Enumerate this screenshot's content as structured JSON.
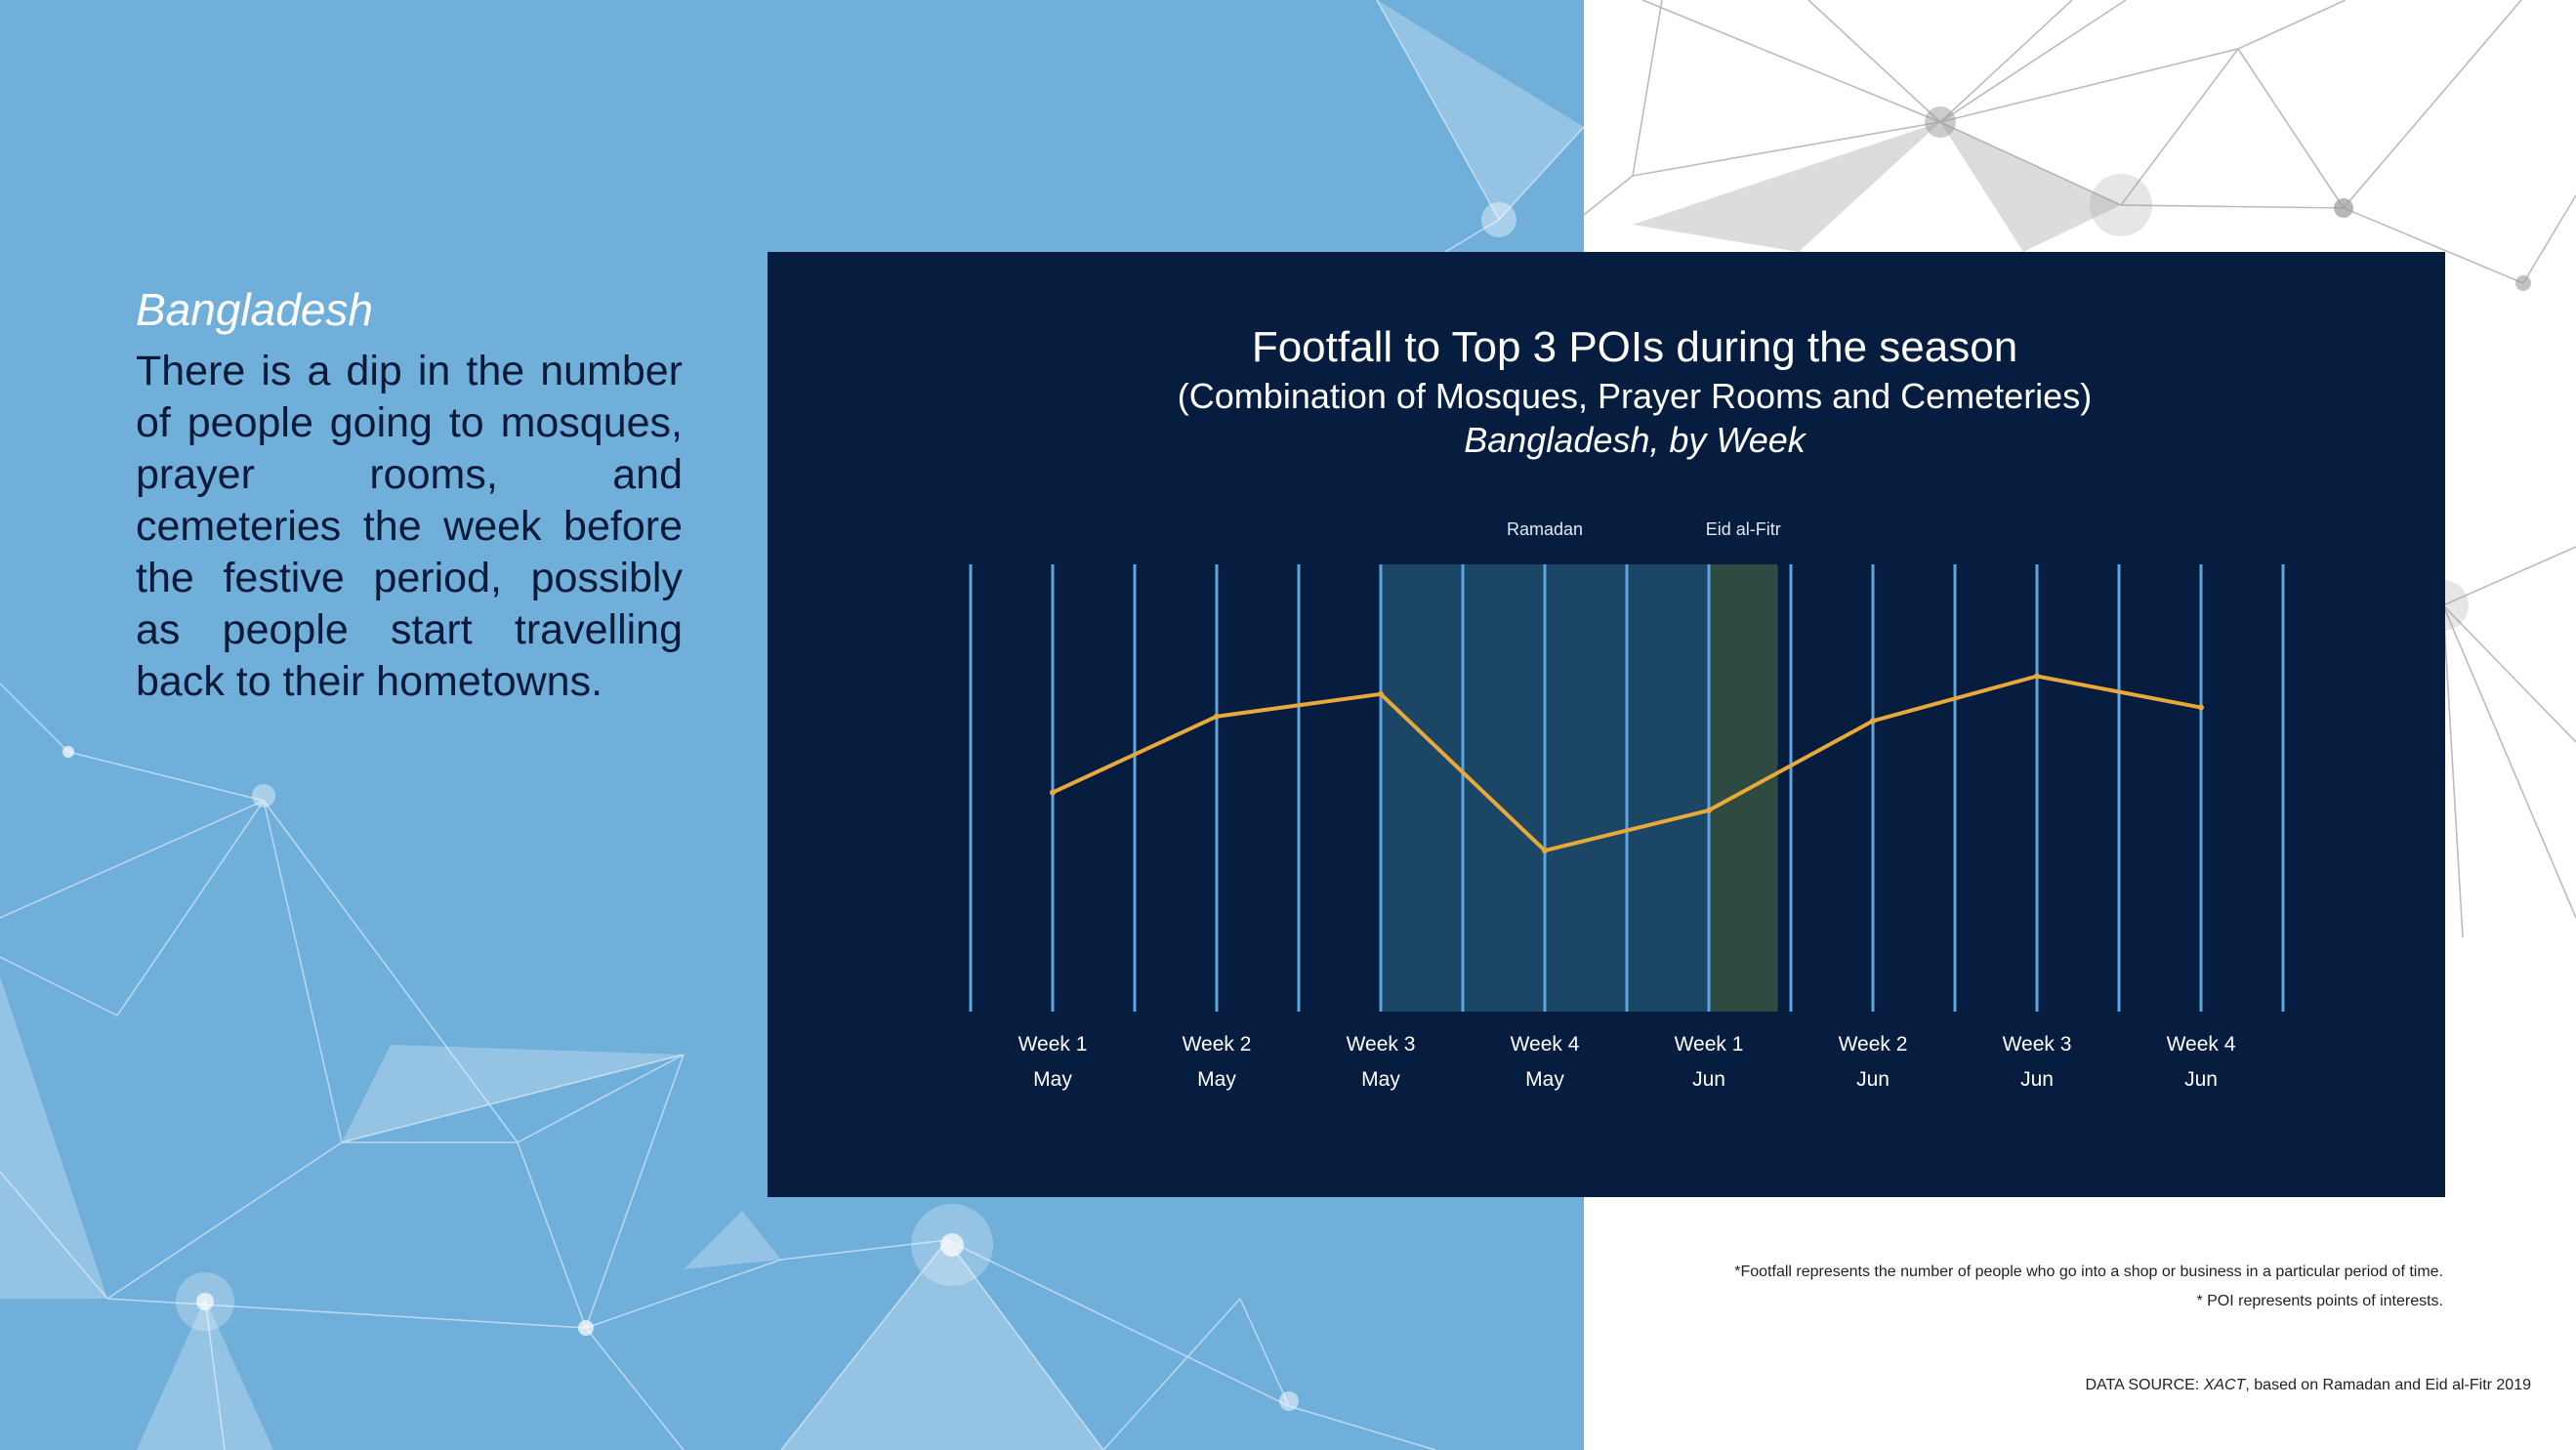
{
  "left": {
    "country": "Bangladesh",
    "description": "There is a dip in the number of people going to mosques, prayer rooms, and cemeteries the week before the festive period, possibly as people start travelling back to  their hometowns."
  },
  "colors": {
    "left_panel": "#71afdb",
    "chart_background": "#061d40",
    "line": "#e8a93a",
    "week_lines": "#5aa6e0",
    "ramadan_band": "#1b4666",
    "eid_band": "#2f4a40"
  },
  "chart_data": {
    "type": "line",
    "title": "Footfall to Top 3 POIs during the season",
    "subtitle": "(Combination of Mosques, Prayer Rooms and Cemeteries)",
    "subtitle2": "Bangladesh, by Week",
    "xlabel": "",
    "ylabel": "",
    "grid": false,
    "categories": [
      {
        "week": "Week 1",
        "month": "May"
      },
      {
        "week": "Week 2",
        "month": "May"
      },
      {
        "week": "Week 3",
        "month": "May"
      },
      {
        "week": "Week 4",
        "month": "May"
      },
      {
        "week": "Week 1",
        "month": "Jun"
      },
      {
        "week": "Week 2",
        "month": "Jun"
      },
      {
        "week": "Week 3",
        "month": "Jun"
      },
      {
        "week": "Week 4",
        "month": "Jun"
      }
    ],
    "series": [
      {
        "values": [
          0.49,
          0.66,
          0.71,
          0.36,
          0.45,
          0.65,
          0.75,
          0.68
        ]
      }
    ],
    "ylim": [
      0,
      1
    ],
    "annotations": [
      {
        "label": "Ramadan",
        "from": 2,
        "to": 4
      },
      {
        "label": "Eid al-Fitr",
        "from": 4,
        "to": 4.42
      }
    ]
  },
  "footnotes": {
    "footfall": "*Footfall represents the number of people who go into a shop or business in a particular period of time.",
    "poi": "* POI represents points of interests."
  },
  "source": {
    "prefix": "DATA SOURCE:",
    "name": "XACT",
    "suffix": ", based on Ramadan and Eid al-Fitr 2019"
  }
}
